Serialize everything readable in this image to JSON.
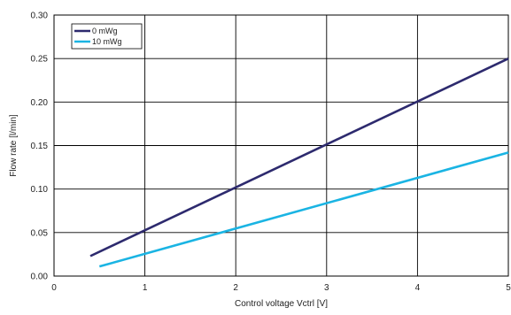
{
  "chart_data": {
    "type": "line",
    "title": "",
    "xlabel": "Control voltage Vctrl [V]",
    "ylabel": "Flow rate [l/min]",
    "xlim": [
      0,
      5
    ],
    "ylim": [
      0,
      0.3
    ],
    "xticks": [
      0,
      1,
      2,
      3,
      4,
      5
    ],
    "xtick_labels": [
      "0",
      "1",
      "2",
      "3",
      "4",
      "5"
    ],
    "yticks": [
      0,
      0.05,
      0.1,
      0.15,
      0.2,
      0.25,
      0.3
    ],
    "ytick_labels": [
      "0.00",
      "0.05",
      "0.10",
      "0.15",
      "0.20",
      "0.25",
      "0.30"
    ],
    "grid": true,
    "legend_position": "top-left",
    "series": [
      {
        "name": "0 mWg",
        "color": "#2d2a6e",
        "x": [
          0.4,
          5.0
        ],
        "y": [
          0.023,
          0.25
        ]
      },
      {
        "name": "10 mWg",
        "color": "#1ab4e3",
        "x": [
          0.5,
          5.0
        ],
        "y": [
          0.011,
          0.142
        ]
      }
    ]
  }
}
